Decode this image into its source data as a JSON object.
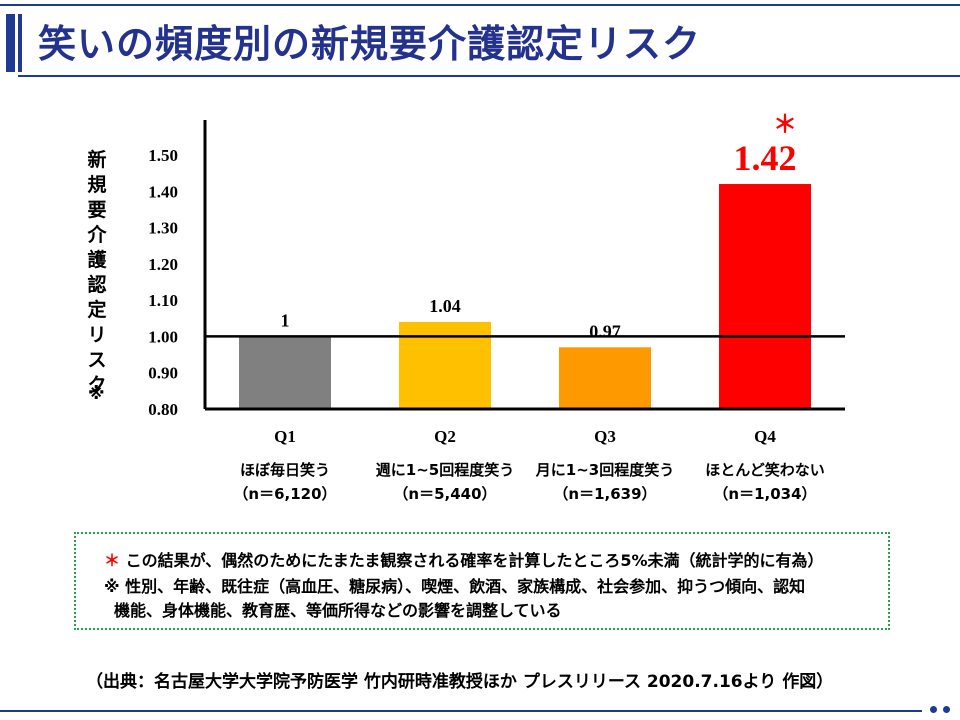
{
  "page": {
    "title": "笑いの頻度別の新規要介護認定リスク",
    "note_star": "＊",
    "note_line1": "この結果が、偶然のためにたまたま観察される確率を計算したところ5%未満（統計学的に有為）",
    "note_line2": "※ 性別、年齢、既往症（高血圧、糖尿病）、喫煙、飲酒、家族構成、社会参加、抑うつ傾向、認知",
    "note_line3": "機能、身体機能、教育歴、等価所得などの影響を調整している",
    "source": "（出典：名古屋大学大学院予防医学 竹内研時准教授ほか プレスリリース 2020.7.16より 作図）"
  },
  "chart_data": {
    "type": "bar",
    "ylabel": "新規要介護認定リスク",
    "ylabel_mark": "※",
    "ylim": [
      0.8,
      1.5
    ],
    "yticks": [
      "0.80",
      "0.90",
      "1.00",
      "1.10",
      "1.20",
      "1.30",
      "1.40",
      "1.50"
    ],
    "reference_line": 1.0,
    "categories": [
      "Q1",
      "Q2",
      "Q3",
      "Q4"
    ],
    "category_desc": [
      "ほぼ毎日笑う",
      "週に1~5回程度笑う",
      "月に1~3回程度笑う",
      "ほとんど笑わない"
    ],
    "category_n": [
      "（n＝6,120）",
      "（n＝5,440）",
      "（n＝1,639）",
      "（n＝1,034）"
    ],
    "values": [
      1.0,
      1.04,
      0.97,
      1.42
    ],
    "value_labels": [
      "1",
      "1.04",
      "0.97",
      "1.42"
    ],
    "colors": [
      "#808080",
      "#ffc000",
      "#ff9900",
      "#ff0000"
    ],
    "significance_marker": "＊",
    "significant_index": 3
  }
}
